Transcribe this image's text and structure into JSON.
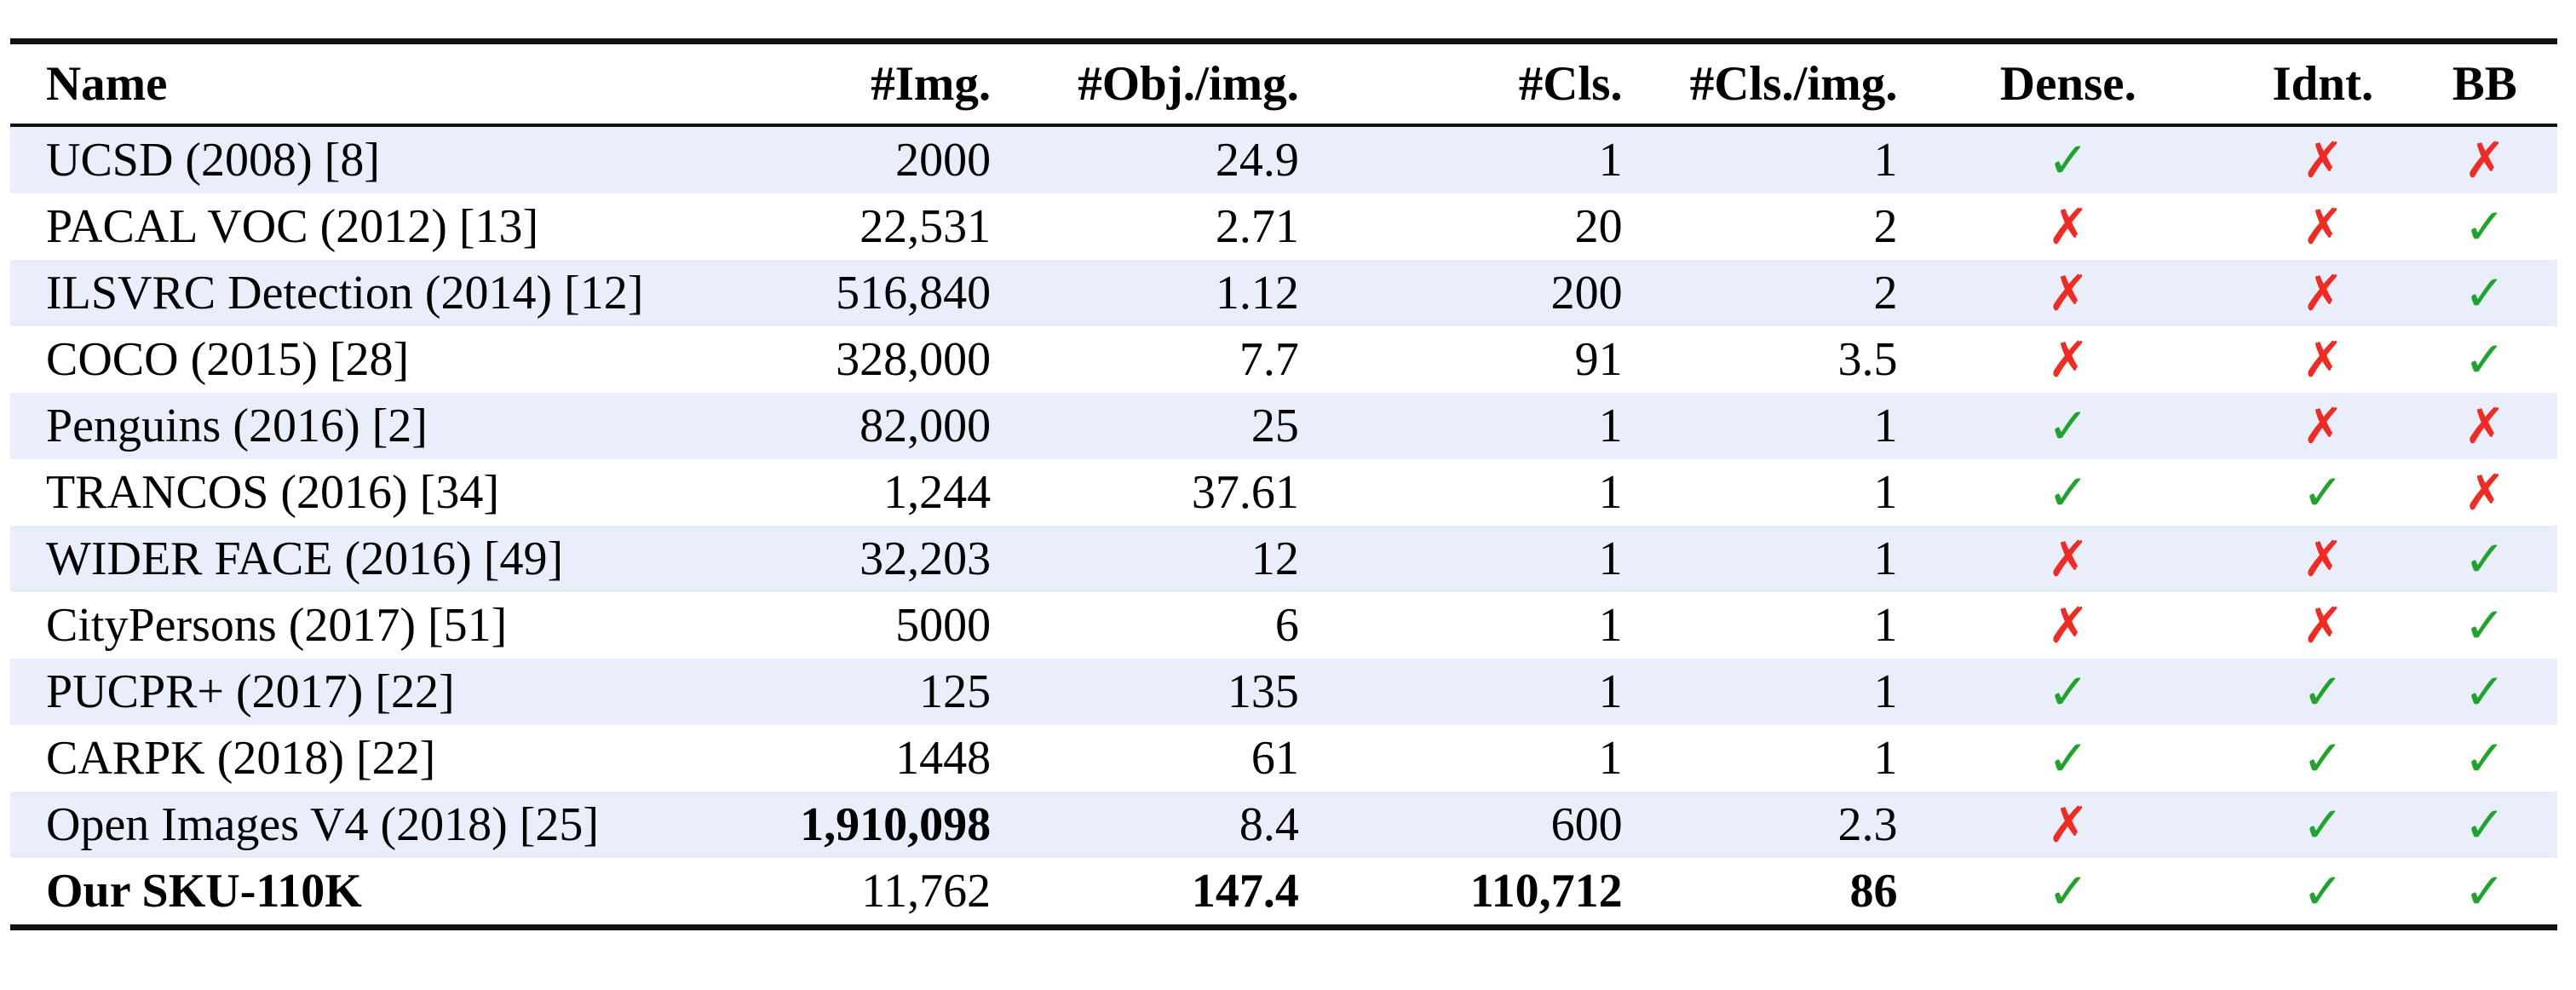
{
  "page": {
    "background": "#ffffff"
  },
  "colors": {
    "stripe": "#EAEEFA",
    "check_green": "#1FA32C",
    "cross_red": "#EF2B24",
    "rule": "#131313",
    "text": "#000000"
  },
  "icons": {
    "check": "✓",
    "cross": "✗"
  },
  "table": {
    "columns": [
      {
        "key": "name",
        "label": "Name",
        "align": "left",
        "type": "text"
      },
      {
        "key": "img",
        "label": "#Img.",
        "align": "right",
        "type": "text"
      },
      {
        "key": "obj_per_img",
        "label": "#Obj./img.",
        "align": "right",
        "type": "text"
      },
      {
        "key": "cls",
        "label": "#Cls.",
        "align": "right",
        "type": "text"
      },
      {
        "key": "cls_per_img",
        "label": "#Cls./img.",
        "align": "right",
        "type": "text"
      },
      {
        "key": "dense",
        "label": "Dense.",
        "align": "center",
        "type": "mark"
      },
      {
        "key": "idnt",
        "label": "Idnt.",
        "align": "center",
        "type": "mark"
      },
      {
        "key": "bb",
        "label": "BB",
        "align": "center",
        "type": "mark"
      }
    ],
    "rows": [
      {
        "striped": true,
        "bold": [],
        "values": {
          "name": "UCSD (2008) [8]",
          "img": "2000",
          "obj_per_img": "24.9",
          "cls": "1",
          "cls_per_img": "1",
          "dense": "check",
          "idnt": "cross",
          "bb": "cross"
        }
      },
      {
        "striped": false,
        "bold": [],
        "values": {
          "name": "PACAL VOC (2012) [13]",
          "img": "22,531",
          "obj_per_img": "2.71",
          "cls": "20",
          "cls_per_img": "2",
          "dense": "cross",
          "idnt": "cross",
          "bb": "check"
        }
      },
      {
        "striped": true,
        "bold": [],
        "values": {
          "name": "ILSVRC Detection (2014) [12]",
          "img": "516,840",
          "obj_per_img": "1.12",
          "cls": "200",
          "cls_per_img": "2",
          "dense": "cross",
          "idnt": "cross",
          "bb": "check"
        }
      },
      {
        "striped": false,
        "bold": [],
        "values": {
          "name": "COCO (2015) [28]",
          "img": "328,000",
          "obj_per_img": "7.7",
          "cls": "91",
          "cls_per_img": "3.5",
          "dense": "cross",
          "idnt": "cross",
          "bb": "check"
        }
      },
      {
        "striped": true,
        "bold": [],
        "values": {
          "name": "Penguins (2016) [2]",
          "img": "82,000",
          "obj_per_img": "25",
          "cls": "1",
          "cls_per_img": "1",
          "dense": "check",
          "idnt": "cross",
          "bb": "cross"
        }
      },
      {
        "striped": false,
        "bold": [],
        "values": {
          "name": "TRANCOS (2016) [34]",
          "img": "1,244",
          "obj_per_img": "37.61",
          "cls": "1",
          "cls_per_img": "1",
          "dense": "check",
          "idnt": "check",
          "bb": "cross"
        }
      },
      {
        "striped": true,
        "bold": [],
        "values": {
          "name": "WIDER FACE (2016) [49]",
          "img": "32,203",
          "obj_per_img": "12",
          "cls": "1",
          "cls_per_img": "1",
          "dense": "cross",
          "idnt": "cross",
          "bb": "check"
        }
      },
      {
        "striped": false,
        "bold": [],
        "values": {
          "name": "CityPersons (2017) [51]",
          "img": "5000",
          "obj_per_img": "6",
          "cls": "1",
          "cls_per_img": "1",
          "dense": "cross",
          "idnt": "cross",
          "bb": "check"
        }
      },
      {
        "striped": true,
        "bold": [],
        "values": {
          "name": "PUCPR+ (2017) [22]",
          "img": "125",
          "obj_per_img": "135",
          "cls": "1",
          "cls_per_img": "1",
          "dense": "check",
          "idnt": "check",
          "bb": "check"
        }
      },
      {
        "striped": false,
        "bold": [],
        "values": {
          "name": "CARPK (2018) [22]",
          "img": "1448",
          "obj_per_img": "61",
          "cls": "1",
          "cls_per_img": "1",
          "dense": "check",
          "idnt": "check",
          "bb": "check"
        }
      },
      {
        "striped": true,
        "bold": [
          "img"
        ],
        "values": {
          "name": "Open Images V4 (2018) [25]",
          "img": "1,910,098",
          "obj_per_img": "8.4",
          "cls": "600",
          "cls_per_img": "2.3",
          "dense": "cross",
          "idnt": "check",
          "bb": "check"
        }
      },
      {
        "striped": false,
        "bold": [
          "name",
          "obj_per_img",
          "cls",
          "cls_per_img"
        ],
        "values": {
          "name": "Our SKU-110K",
          "img": "11,762",
          "obj_per_img": "147.4",
          "cls": "110,712",
          "cls_per_img": "86",
          "dense": "check",
          "idnt": "check",
          "bb": "check"
        }
      }
    ]
  }
}
